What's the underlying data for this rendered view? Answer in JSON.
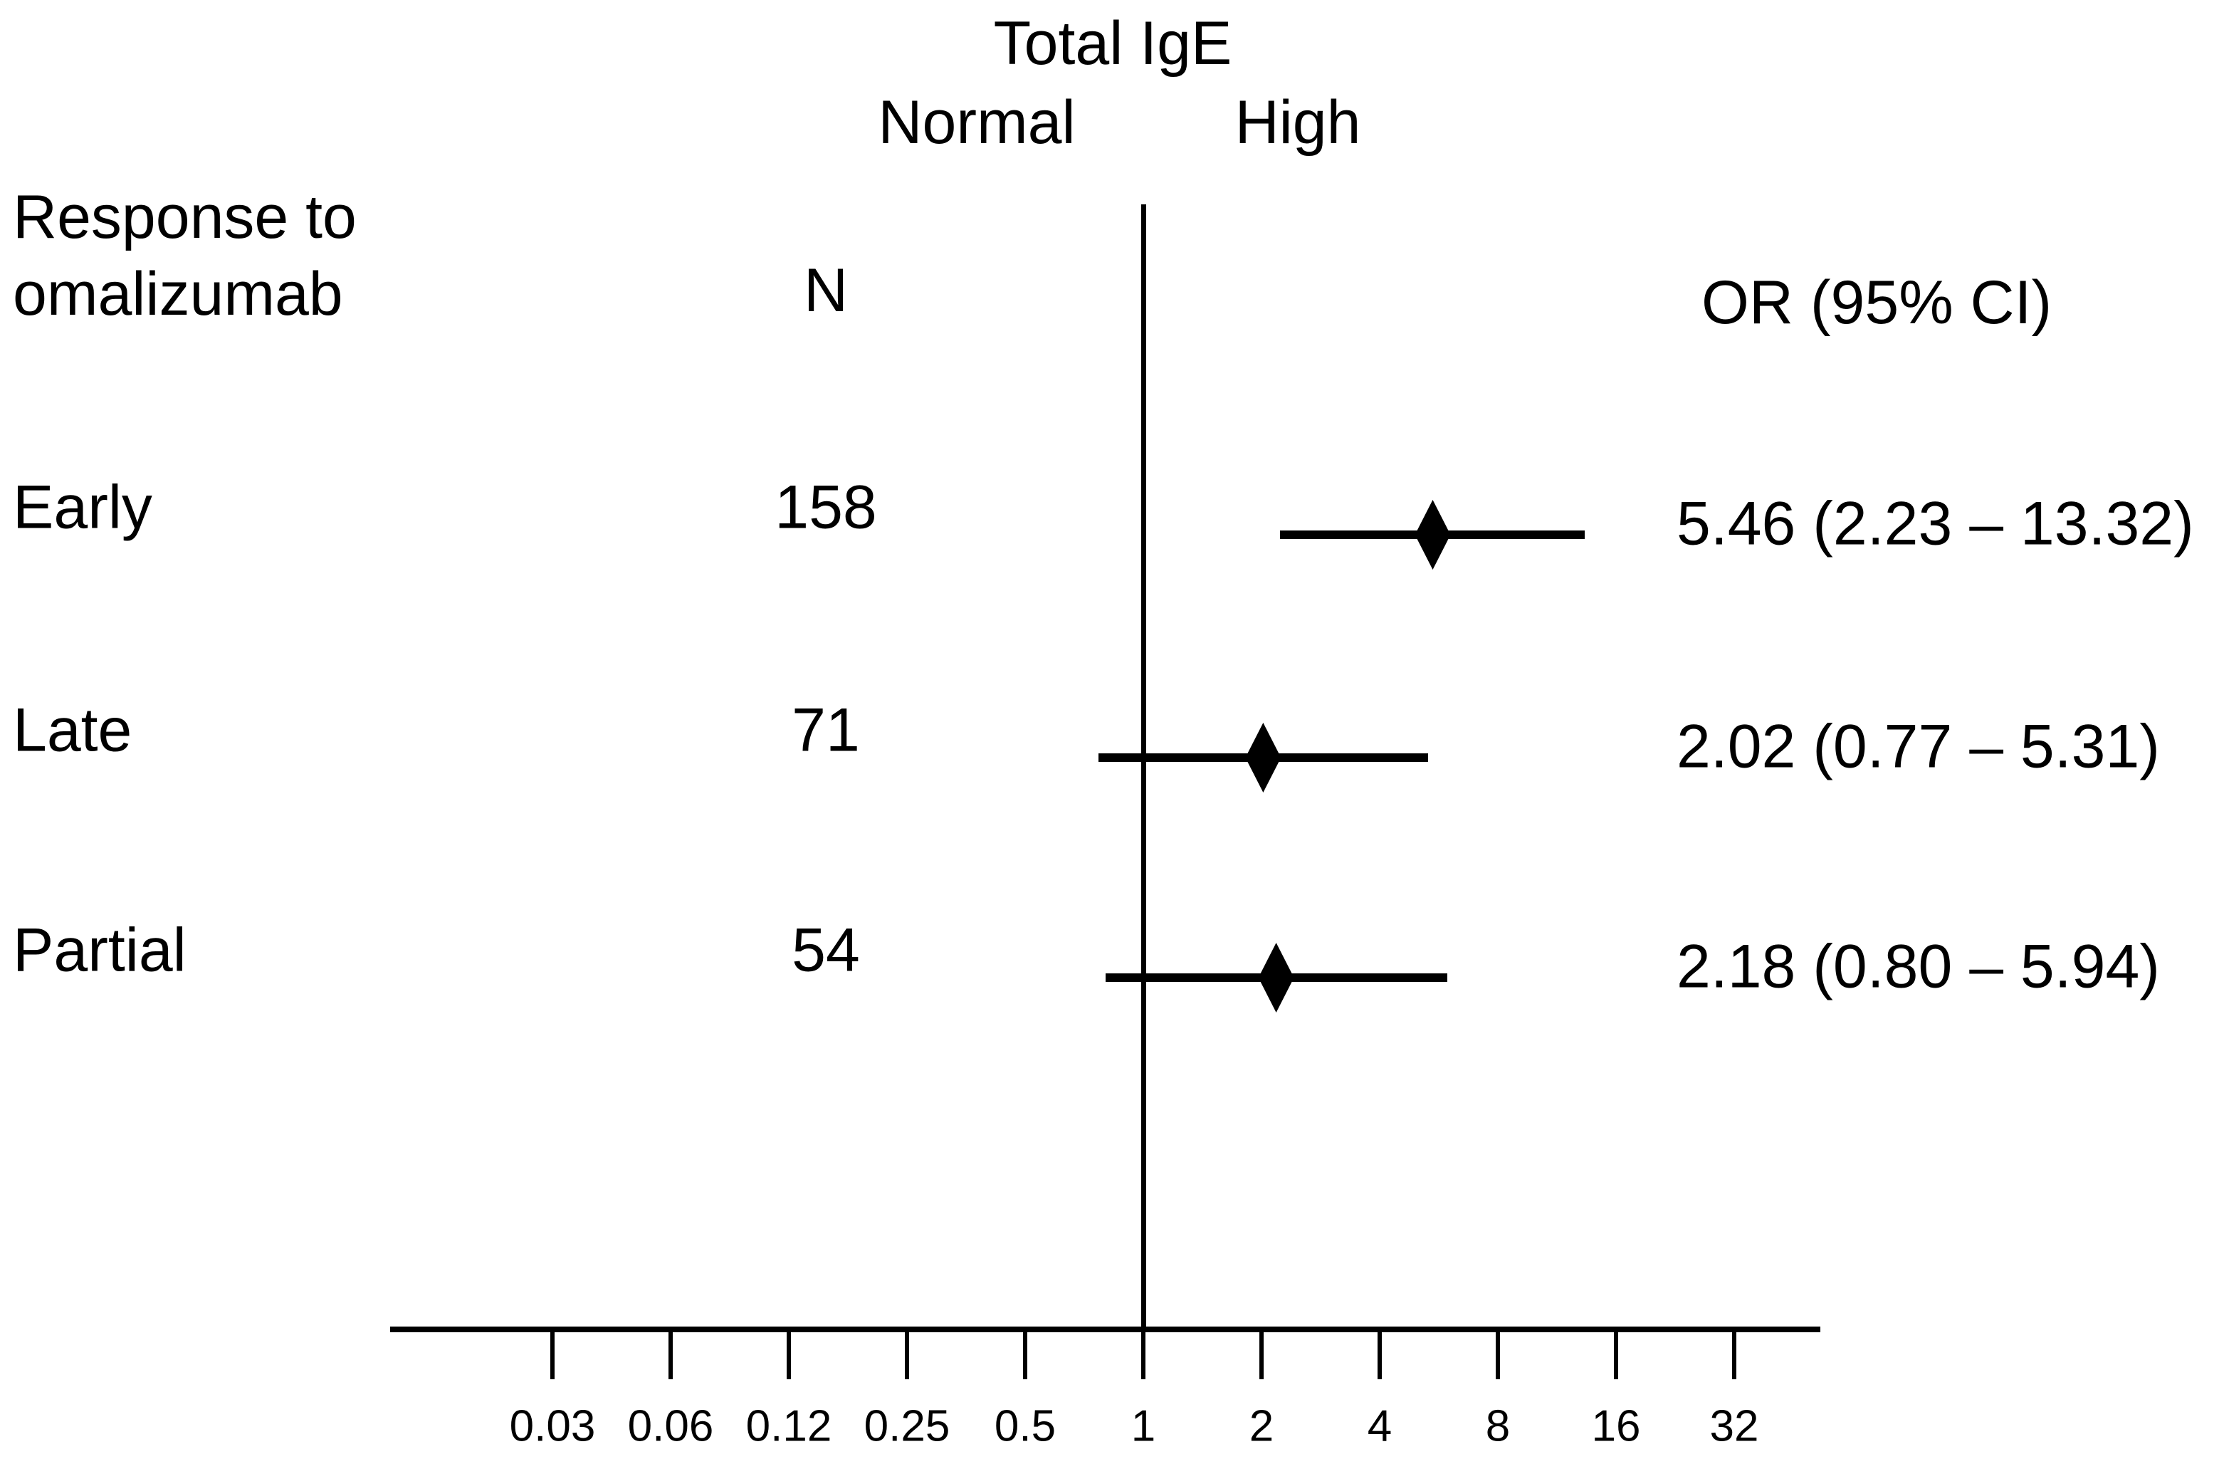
{
  "figure": {
    "title": "Total IgE",
    "group_labels": {
      "normal": "Normal",
      "high": "High"
    },
    "row_header": {
      "line1": "Response to",
      "line2": "omalizumab"
    },
    "n_header": "N",
    "or_header": "OR (95% CI)"
  },
  "colors": {
    "foreground": "#000000",
    "background": "#ffffff"
  },
  "chart_data": {
    "type": "forest-plot",
    "title": "Total IgE",
    "x_scale": "log2",
    "reference_line_value": 1,
    "columns": [
      "Response to omalizumab",
      "N",
      "OR (95% CI)"
    ],
    "rows": [
      {
        "label": "Early",
        "n": "158",
        "or": 5.46,
        "ci_low": 2.23,
        "ci_high": 13.32,
        "or_text": "5.46 (2.23 – 13.32)"
      },
      {
        "label": "Late",
        "n": "71",
        "or": 2.02,
        "ci_low": 0.77,
        "ci_high": 5.31,
        "or_text": "2.02 (0.77 – 5.31)"
      },
      {
        "label": "Partial",
        "n": "54",
        "or": 2.18,
        "ci_low": 0.8,
        "ci_high": 5.94,
        "or_text": "2.18 (0.80 – 5.94)"
      }
    ],
    "axis": {
      "ticks": [
        {
          "label": "0.03",
          "log2": -5
        },
        {
          "label": "0.06",
          "log2": -4
        },
        {
          "label": "0.12",
          "log2": -3
        },
        {
          "label": "0.25",
          "log2": -2
        },
        {
          "label": "0.5",
          "log2": -1
        },
        {
          "label": "1",
          "log2": 0
        },
        {
          "label": "2",
          "log2": 1
        },
        {
          "label": "4",
          "log2": 2
        },
        {
          "label": "8",
          "log2": 3
        },
        {
          "label": "16",
          "log2": 4
        },
        {
          "label": "32",
          "log2": 5
        }
      ]
    }
  }
}
